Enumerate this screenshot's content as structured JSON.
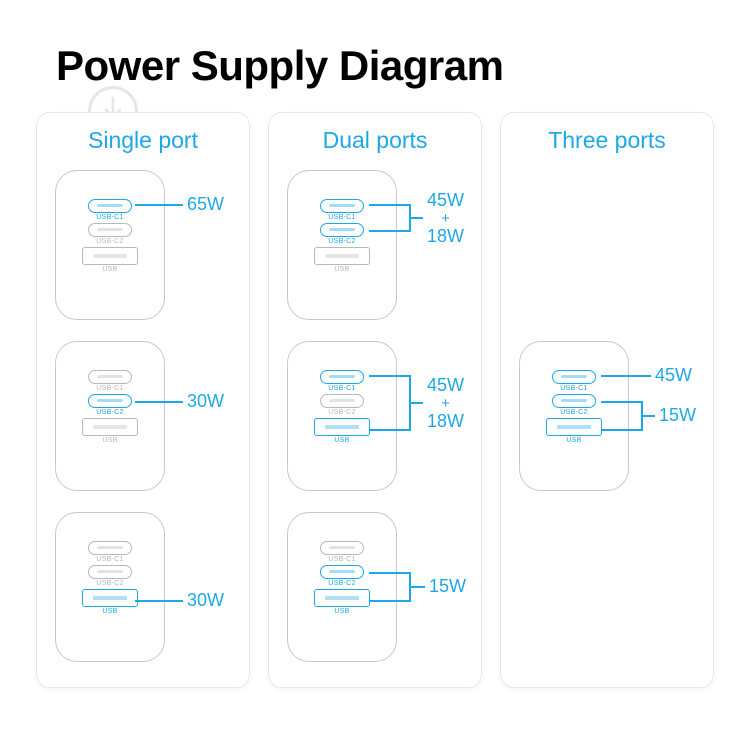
{
  "title": "Power Supply Diagram",
  "accent_color": "#1ea7e8",
  "muted_color": "#b8b8b8",
  "text_black": "#000000",
  "columns": [
    {
      "header": "Single port",
      "chargers": [
        {
          "ports": [
            {
              "type": "c",
              "label": "USB-C1",
              "active": true,
              "watt": "65W"
            },
            {
              "type": "c",
              "label": "USB-C2",
              "active": false
            },
            {
              "type": "a",
              "label": "USB",
              "active": false
            }
          ]
        },
        {
          "ports": [
            {
              "type": "c",
              "label": "USB-C1",
              "active": false
            },
            {
              "type": "c",
              "label": "USB-C2",
              "active": true,
              "watt": "30W"
            },
            {
              "type": "a",
              "label": "USB",
              "active": false
            }
          ]
        },
        {
          "ports": [
            {
              "type": "c",
              "label": "USB-C1",
              "active": false
            },
            {
              "type": "c",
              "label": "USB-C2",
              "active": false
            },
            {
              "type": "a",
              "label": "USB",
              "active": true,
              "watt": "30W"
            }
          ]
        }
      ]
    },
    {
      "header": "Dual ports",
      "chargers": [
        {
          "combo": {
            "top": "45W",
            "bottom": "18W"
          },
          "ports": [
            {
              "type": "c",
              "label": "USB-C1",
              "active": true
            },
            {
              "type": "c",
              "label": "USB-C2",
              "active": true
            },
            {
              "type": "a",
              "label": "USB",
              "active": false
            }
          ]
        },
        {
          "combo": {
            "top": "45W",
            "bottom": "18W"
          },
          "ports": [
            {
              "type": "c",
              "label": "USB-C1",
              "active": true
            },
            {
              "type": "c",
              "label": "USB-C2",
              "active": false
            },
            {
              "type": "a",
              "label": "USB",
              "active": true
            }
          ]
        },
        {
          "single_watt": "15W",
          "ports": [
            {
              "type": "c",
              "label": "USB-C1",
              "active": false
            },
            {
              "type": "c",
              "label": "USB-C2",
              "active": true
            },
            {
              "type": "a",
              "label": "USB",
              "active": true
            }
          ]
        }
      ]
    },
    {
      "header": "Three ports",
      "chargers": [
        null,
        {
          "tri": {
            "top": "45W",
            "bottom": "15W"
          },
          "ports": [
            {
              "type": "c",
              "label": "USB-C1",
              "active": true
            },
            {
              "type": "c",
              "label": "USB-C2",
              "active": true
            },
            {
              "type": "a",
              "label": "USB",
              "active": true
            }
          ]
        },
        null
      ]
    }
  ]
}
